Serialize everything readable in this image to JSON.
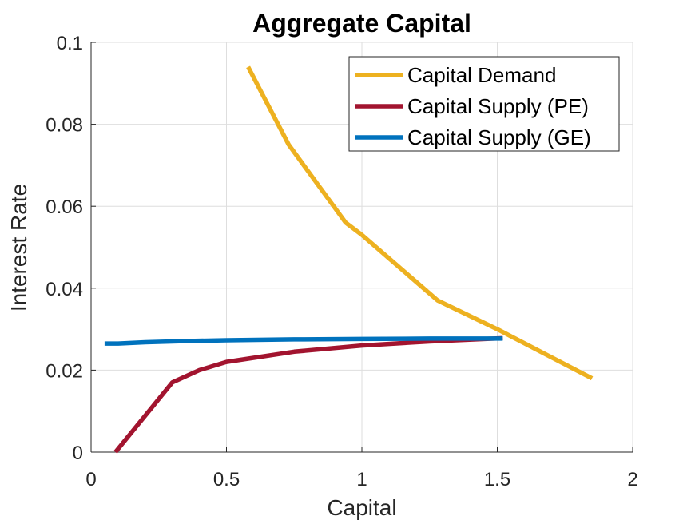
{
  "chart_data": {
    "type": "line",
    "title": "Aggregate Capital",
    "xlabel": "Capital",
    "ylabel": "Interest Rate",
    "xlim": [
      0,
      2
    ],
    "ylim": [
      0,
      0.1
    ],
    "xticks": [
      "0",
      "0.5",
      "1",
      "1.5",
      "2"
    ],
    "yticks": [
      "0",
      "0.02",
      "0.04",
      "0.06",
      "0.08",
      "0.1"
    ],
    "grid": true,
    "legend_position": "top-right",
    "series": [
      {
        "name": "Capital Demand",
        "color": "#EDB120",
        "x": [
          0.58,
          0.73,
          0.94,
          1.0,
          1.28,
          1.5,
          1.85
        ],
        "y": [
          0.094,
          0.075,
          0.056,
          0.053,
          0.037,
          0.03,
          0.018
        ]
      },
      {
        "name": "Capital Supply (PE)",
        "color": "#A2142F",
        "x": [
          0.09,
          0.3,
          0.4,
          0.5,
          0.6,
          0.75,
          1.0,
          1.25,
          1.52
        ],
        "y": [
          0.0,
          0.017,
          0.02,
          0.022,
          0.023,
          0.0245,
          0.026,
          0.027,
          0.0278
        ]
      },
      {
        "name": "Capital Supply (GE)",
        "color": "#0072BD",
        "x": [
          0.05,
          0.1,
          0.2,
          0.35,
          0.5,
          0.75,
          1.0,
          1.25,
          1.52
        ],
        "y": [
          0.0265,
          0.0265,
          0.0268,
          0.0271,
          0.0273,
          0.0275,
          0.0276,
          0.0277,
          0.0277
        ]
      }
    ]
  }
}
